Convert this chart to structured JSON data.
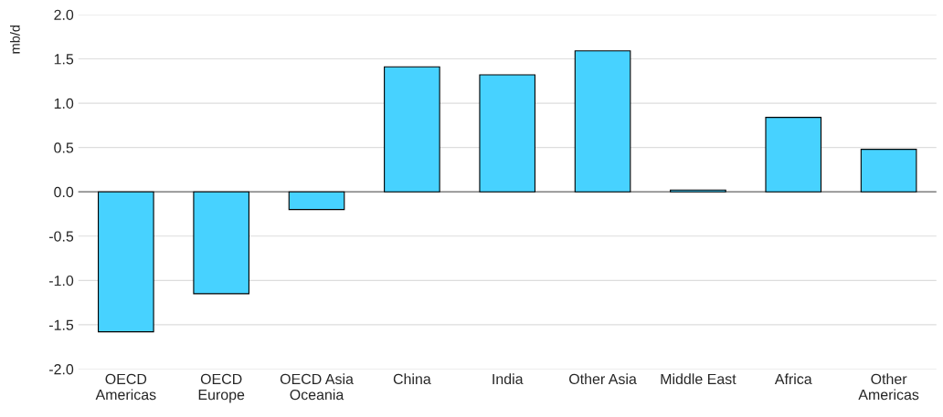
{
  "chart_data": {
    "type": "bar",
    "ylabel": "mb/d",
    "categories": [
      "OECD\nAmericas",
      "OECD\nEurope",
      "OECD Asia\nOceania",
      "China",
      "India",
      "Other Asia",
      "Middle East",
      "Africa",
      "Other\nAmericas"
    ],
    "values": [
      -1.58,
      -1.15,
      -0.2,
      1.41,
      1.32,
      1.59,
      0.02,
      0.84,
      0.48
    ],
    "color": "#47d2ff",
    "ylim": [
      -2.0,
      2.0
    ],
    "yticks": [
      {
        "value": -2.0,
        "label": "-2.0"
      },
      {
        "value": -1.5,
        "label": "-1.5"
      },
      {
        "value": -1.0,
        "label": "-1.0"
      },
      {
        "value": -0.5,
        "label": "-0.5"
      },
      {
        "value": 0.0,
        "label": "0.0"
      },
      {
        "value": 0.5,
        "label": "0.5"
      },
      {
        "value": 1.0,
        "label": "1.0"
      },
      {
        "value": 1.5,
        "label": "1.5"
      },
      {
        "value": 2.0,
        "label": "2.0"
      }
    ],
    "grid": "y",
    "ref_lines": [
      {
        "axis": "y",
        "value": 0,
        "color": "#808080"
      }
    ]
  }
}
